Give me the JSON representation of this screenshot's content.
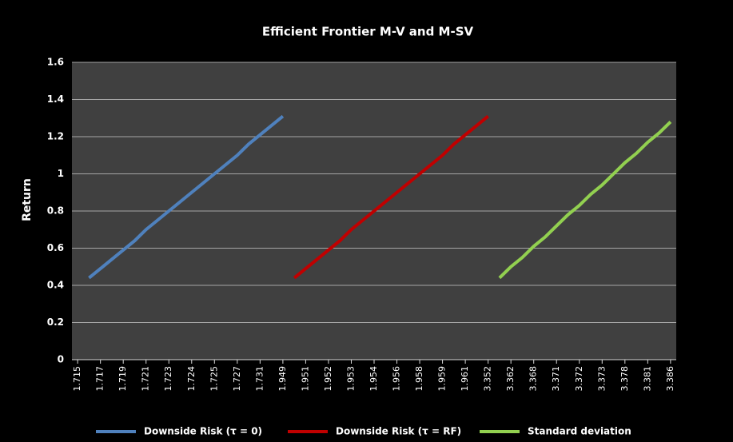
{
  "chart_data": {
    "type": "line",
    "title": "Efficient Frontier M-V and  M-SV",
    "y_label": "Return",
    "categories": [
      "1.715",
      null,
      "1.717",
      null,
      "1.719",
      null,
      "1.721",
      null,
      "1.723",
      null,
      "1.724",
      null,
      "1.725",
      null,
      "1.727",
      null,
      "1.731",
      null,
      "1.949",
      null,
      "1.951",
      null,
      "1.952",
      null,
      "1.953",
      null,
      "1.954",
      null,
      "1.956",
      null,
      "1.958",
      null,
      "1.959",
      null,
      "1.961",
      null,
      "3.352",
      null,
      "3.362",
      null,
      "3.368",
      null,
      "3.371",
      null,
      "3.372",
      null,
      "3.373",
      null,
      "3.378",
      null,
      "3.381",
      null,
      "3.386"
    ],
    "series": [
      {
        "name": "Downside Risk (τ = 0)",
        "color": "#4f81bd",
        "values": [
          null,
          0.44,
          0.49,
          0.54,
          0.59,
          0.64,
          0.7,
          0.75,
          0.8,
          0.85,
          0.9,
          0.95,
          1.0,
          1.05,
          1.1,
          1.16,
          1.21,
          1.26,
          1.31,
          null,
          null,
          null,
          null,
          null,
          null,
          null,
          null,
          null,
          null,
          null,
          null,
          null,
          null,
          null,
          null,
          null,
          null,
          null,
          null,
          null,
          null,
          null,
          null,
          null,
          null,
          null,
          null,
          null,
          null,
          null,
          null,
          null,
          null
        ]
      },
      {
        "name": "Downside Risk (τ = RF)",
        "color": "#c00000",
        "values": [
          null,
          null,
          null,
          null,
          null,
          null,
          null,
          null,
          null,
          null,
          null,
          null,
          null,
          null,
          null,
          null,
          null,
          null,
          null,
          0.44,
          0.49,
          0.54,
          0.59,
          0.64,
          0.7,
          0.75,
          0.8,
          0.85,
          0.9,
          0.95,
          1.0,
          1.05,
          1.1,
          1.16,
          1.21,
          1.26,
          1.31,
          null,
          null,
          null,
          null,
          null,
          null,
          null,
          null,
          null,
          null,
          null,
          null,
          null,
          null,
          null,
          null
        ]
      },
      {
        "name": "Standard deviation",
        "color": "#92d050",
        "values": [
          null,
          null,
          null,
          null,
          null,
          null,
          null,
          null,
          null,
          null,
          null,
          null,
          null,
          null,
          null,
          null,
          null,
          null,
          null,
          null,
          null,
          null,
          null,
          null,
          null,
          null,
          null,
          null,
          null,
          null,
          null,
          null,
          null,
          null,
          null,
          null,
          null,
          0.44,
          0.5,
          0.55,
          0.61,
          0.66,
          0.72,
          0.78,
          0.83,
          0.89,
          0.94,
          1.0,
          1.06,
          1.11,
          1.17,
          1.22,
          1.28
        ]
      }
    ],
    "ylim": [
      0,
      1.6
    ],
    "yticks": [
      0,
      0.2,
      0.4,
      0.6,
      0.8,
      1,
      1.2,
      1.4,
      1.6
    ],
    "grid": true,
    "legend": "bottom"
  }
}
